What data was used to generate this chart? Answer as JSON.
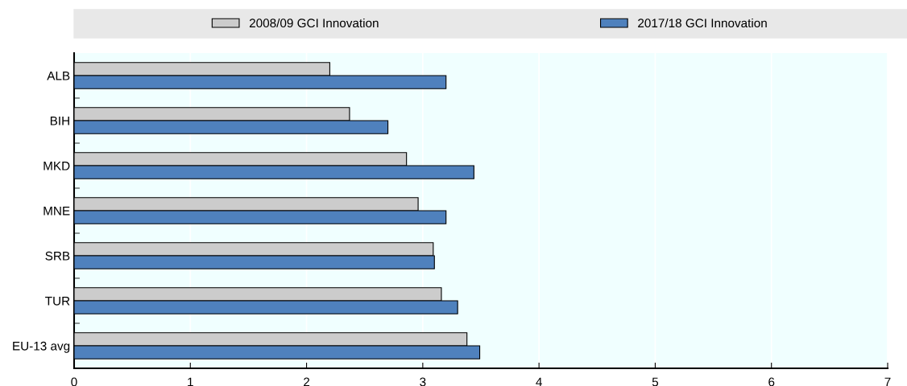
{
  "chart_data": {
    "type": "bar",
    "orientation": "horizontal",
    "categories": [
      "ALB",
      "BIH",
      "MKD",
      "MNE",
      "SRB",
      "TUR",
      "EU-13 avg"
    ],
    "series": [
      {
        "name": "2008/09 GCI Innovation",
        "color": "#cccccc",
        "values": [
          2.2,
          2.37,
          2.86,
          2.96,
          3.09,
          3.16,
          3.38
        ]
      },
      {
        "name": "2017/18 GCI Innovation",
        "color": "#4f81bd",
        "values": [
          3.2,
          2.7,
          3.44,
          3.2,
          3.1,
          3.3,
          3.49
        ]
      }
    ],
    "xlim": [
      0,
      7
    ],
    "xticks": [
      0,
      1,
      2,
      3,
      4,
      5,
      6,
      7
    ],
    "grid": "x",
    "legend": "top"
  }
}
